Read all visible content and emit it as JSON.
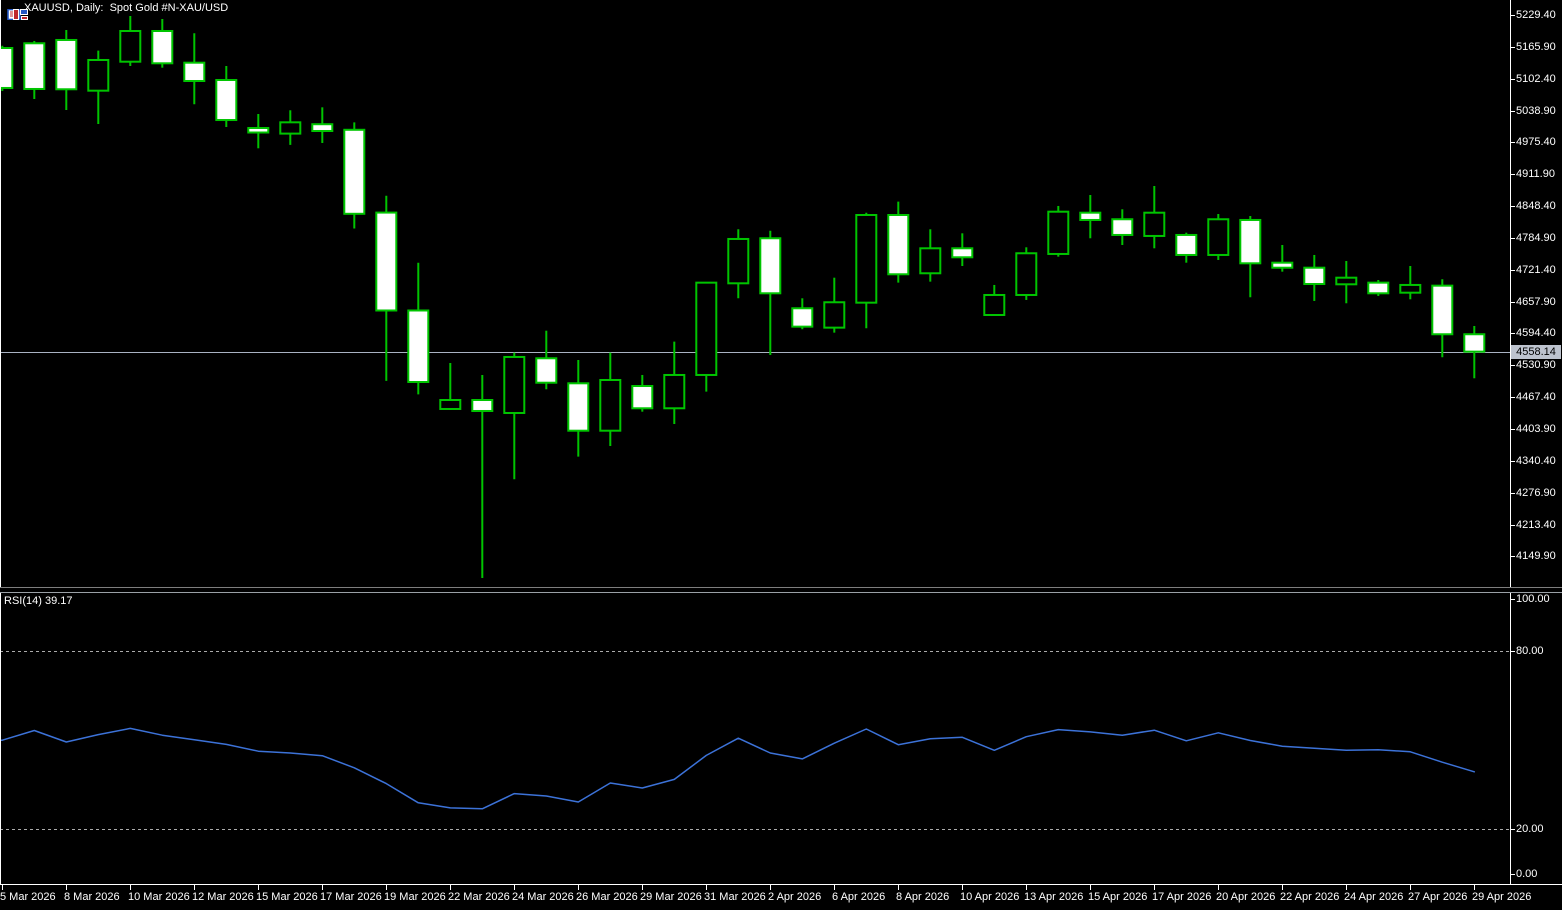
{
  "window": {
    "title": "XAUUSD, Daily:  Spot Gold #N-XAU/USD",
    "icons": [
      "market-watch-window-icon",
      "chart-window-icon"
    ]
  },
  "colors": {
    "background": "#000000",
    "candle_outline": "#00C400",
    "candle_white_fill": "#FFFFFF",
    "candle_black_fill": "#000000",
    "axis_text": "#FFFFFF",
    "axis_line": "#FFFFFF",
    "current_price_line": "#A9B2C2",
    "badge_background": "#BDC3CE",
    "badge_text": "#000000",
    "rsi_line": "#3C72D8",
    "rsi_level_dash": "#ABABAB"
  },
  "price_axis": {
    "tick_values": [
      5229.4,
      5165.9,
      5102.4,
      5038.9,
      4975.4,
      4911.9,
      4848.4,
      4784.9,
      4721.4,
      4657.9,
      4594.4,
      4530.9,
      4467.4,
      4403.9,
      4340.4,
      4276.9,
      4213.4,
      4149.9
    ],
    "current_price_label": "4558.14"
  },
  "time_axis": {
    "labels": [
      "5 Mar 2026",
      "8 Mar 2026",
      "10 Mar 2026",
      "12 Mar 2026",
      "15 Mar 2026",
      "17 Mar 2026",
      "19 Mar 2026",
      "22 Mar 2026",
      "24 Mar 2026",
      "26 Mar 2026",
      "29 Mar 2026",
      "31 Mar 2026",
      "2 Apr 2026",
      "6 Apr 2026",
      "8 Apr 2026",
      "10 Apr 2026",
      "13 Apr 2026",
      "15 Apr 2026",
      "17 Apr 2026",
      "20 Apr 2026",
      "22 Apr 2026",
      "24 Apr 2026",
      "27 Apr 2026",
      "29 Apr 2026"
    ]
  },
  "rsi_panel": {
    "label": "RSI(14) 39.17",
    "tick_values": [
      100,
      80,
      20,
      0
    ],
    "dashed_levels": [
      80,
      20
    ]
  },
  "chart_data": {
    "type": "candlestick",
    "symbol": "XAUUSD",
    "timeframe": "Daily",
    "description": "Spot Gold #N-XAU/USD",
    "current_price": 4558.14,
    "price_axis_range_visible": [
      4118,
      5237
    ],
    "grid": false,
    "candles_note": "fields per candle: [date, open, high, low, close, bodyFill]; white body = close below open in this color scheme, black (hollow) body = close above open",
    "candles": [
      [
        "5 Mar 2026",
        5163.6,
        5168.0,
        5078.0,
        5083.9,
        "white"
      ],
      [
        "6 Mar 2026",
        5173.0,
        5177.6,
        5061.9,
        5081.9,
        "white"
      ],
      [
        "8 Mar 2026",
        5179.6,
        5199.5,
        5040.0,
        5081.3,
        "white"
      ],
      [
        "9 Mar 2026",
        5078.5,
        5158.3,
        5012.1,
        5139.7,
        "black"
      ],
      [
        "10 Mar 2026",
        5136.3,
        5227.4,
        5127.7,
        5197.5,
        "black"
      ],
      [
        "11 Mar 2026",
        5197.5,
        5221.4,
        5124.3,
        5133.1,
        "white"
      ],
      [
        "12 Mar 2026",
        5134.3,
        5192.9,
        5051.4,
        5097.8,
        "white"
      ],
      [
        "13 Mar 2026",
        5099.8,
        5127.7,
        5006.1,
        5020.0,
        "white"
      ],
      [
        "15 Mar 2026",
        5004.1,
        5032.0,
        4963.6,
        4995.1,
        "white"
      ],
      [
        "16 Mar 2026",
        4992.9,
        5039.4,
        4970.4,
        5015.4,
        "black"
      ],
      [
        "17 Mar 2026",
        5011.6,
        5045.3,
        4974.2,
        4998.1,
        "white"
      ],
      [
        "18 Mar 2026",
        5000.5,
        5015.4,
        4803.7,
        4833.0,
        "white"
      ],
      [
        "19 Mar 2026",
        4835.4,
        4869.1,
        4499.8,
        4640.2,
        "white"
      ],
      [
        "20 Mar 2026",
        4640.2,
        4735.5,
        4472.9,
        4497.6,
        "white"
      ],
      [
        "22 Mar 2026",
        4443.8,
        4535.5,
        4441.8,
        4461.7,
        "black"
      ],
      [
        "23 Mar 2026",
        4461.7,
        4511.6,
        4106.8,
        4439.8,
        "white"
      ],
      [
        "24 Mar 2026",
        4435.8,
        4556.1,
        4303.6,
        4547.5,
        "black"
      ],
      [
        "25 Mar 2026",
        4544.9,
        4599.9,
        4483.1,
        4496.2,
        "white"
      ],
      [
        "26 Mar 2026",
        4495.0,
        4541.5,
        4348.7,
        4400.5,
        "white"
      ],
      [
        "27 Mar 2026",
        4400.5,
        4556.1,
        4370.0,
        4501.6,
        "black"
      ],
      [
        "29 Mar 2026",
        4489.6,
        4511.6,
        4438.4,
        4445.2,
        "white"
      ],
      [
        "30 Mar 2026",
        4445.2,
        4578.0,
        4413.9,
        4511.6,
        "black"
      ],
      [
        "31 Mar 2026",
        4511.6,
        4695.7,
        4478.3,
        4695.7,
        "black"
      ],
      [
        "1 Apr 2026",
        4694.4,
        4802.1,
        4664.5,
        4782.8,
        "black"
      ],
      [
        "2 Apr 2026",
        4784.2,
        4799.3,
        4551.5,
        4674.5,
        "white"
      ],
      [
        "3 Apr 2026",
        4644.6,
        4664.5,
        4602.8,
        4608.0,
        "white"
      ],
      [
        "6 Apr 2026",
        4606.0,
        4705.6,
        4596.0,
        4656.6,
        "black"
      ],
      [
        "7 Apr 2026",
        4655.8,
        4835.2,
        4604.7,
        4830.6,
        "black"
      ],
      [
        "8 Apr 2026",
        4830.6,
        4857.2,
        4695.7,
        4712.4,
        "white"
      ],
      [
        "9 Apr 2026",
        4714.4,
        4802.1,
        4697.7,
        4764.2,
        "black"
      ],
      [
        "10 Apr 2026",
        4764.2,
        4794.1,
        4728.9,
        4746.3,
        "white"
      ],
      [
        "12 Apr 2026",
        4631.2,
        4691.1,
        4631.2,
        4671.1,
        "black"
      ],
      [
        "13 Apr 2026",
        4671.1,
        4766.2,
        4661.2,
        4754.3,
        "black"
      ],
      [
        "14 Apr 2026",
        4752.9,
        4848.6,
        4747.5,
        4837.2,
        "black"
      ],
      [
        "15 Apr 2026",
        4835.2,
        4870.5,
        4784.2,
        4820.7,
        "white"
      ],
      [
        "16 Apr 2026",
        4822.1,
        4842.0,
        4770.8,
        4790.8,
        "white"
      ],
      [
        "17 Apr 2026",
        4788.8,
        4888.4,
        4764.2,
        4835.2,
        "black"
      ],
      [
        "19 Apr 2026",
        4790.8,
        4795.3,
        4735.5,
        4750.9,
        "white"
      ],
      [
        "20 Apr 2026",
        4750.9,
        4832.6,
        4740.9,
        4822.1,
        "black"
      ],
      [
        "21 Apr 2026",
        4820.7,
        4828.6,
        4666.5,
        4734.3,
        "white"
      ],
      [
        "22 Apr 2026",
        4735.5,
        4770.8,
        4717.6,
        4725.5,
        "white"
      ],
      [
        "23 Apr 2026",
        4725.5,
        4750.9,
        4659.2,
        4693.0,
        "white"
      ],
      [
        "24 Apr 2026",
        4692.4,
        4738.9,
        4654.6,
        4705.6,
        "black"
      ],
      [
        "26 Apr 2026",
        4695.7,
        4701.0,
        4669.2,
        4674.5,
        "white"
      ],
      [
        "27 Apr 2026",
        4675.7,
        4728.9,
        4662.5,
        4691.1,
        "black"
      ],
      [
        "28 Apr 2026",
        4689.7,
        4702.4,
        4546.9,
        4592.8,
        "white"
      ],
      [
        "29 Apr 2026",
        4592.8,
        4609.3,
        4505.0,
        4558.14,
        "white"
      ]
    ],
    "rsi": {
      "name": "RSI",
      "period": 14,
      "current_value": 39.17,
      "scale": [
        0,
        100
      ],
      "dashed_levels": [
        80,
        20
      ],
      "values": [
        49.8,
        53.1,
        49.2,
        51.7,
        53.8,
        51.5,
        50.0,
        48.4,
        46.1,
        45.5,
        44.6,
        40.5,
        35.2,
        28.7,
        27.0,
        26.7,
        31.8,
        31.0,
        29.0,
        35.4,
        33.7,
        36.6,
        44.7,
        50.5,
        45.5,
        43.5,
        48.8,
        53.6,
        48.3,
        50.3,
        50.8,
        46.4,
        51.0,
        53.4,
        52.6,
        51.5,
        53.2,
        49.6,
        52.3,
        49.7,
        47.8,
        47.1,
        46.4,
        46.6,
        45.9,
        42.4,
        39.17
      ]
    }
  }
}
